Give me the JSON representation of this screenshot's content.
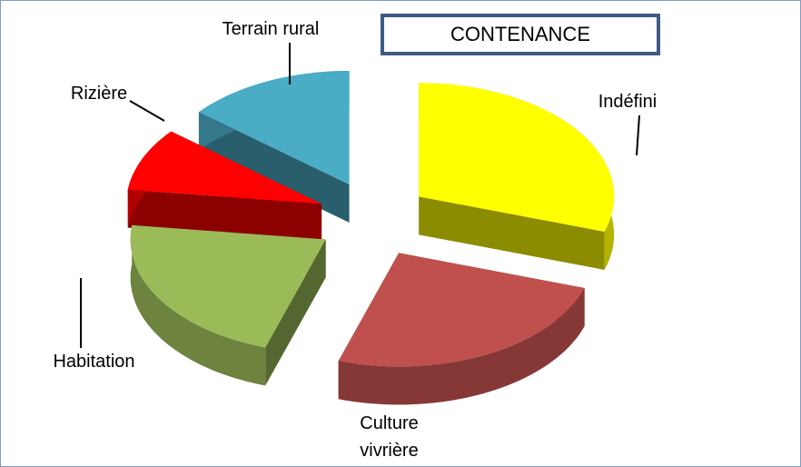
{
  "chart_data": {
    "type": "pie",
    "title": "CONTENANCE",
    "categories": [
      "Indéfini",
      "Culture vivrière",
      "Habitation",
      "Rizière",
      "Terrain rural"
    ],
    "values": [
      30,
      25,
      22,
      9,
      14
    ],
    "colors": [
      "#ffff00",
      "#c0504d",
      "#9bbb59",
      "#ff0000",
      "#4bacc6"
    ]
  }
}
